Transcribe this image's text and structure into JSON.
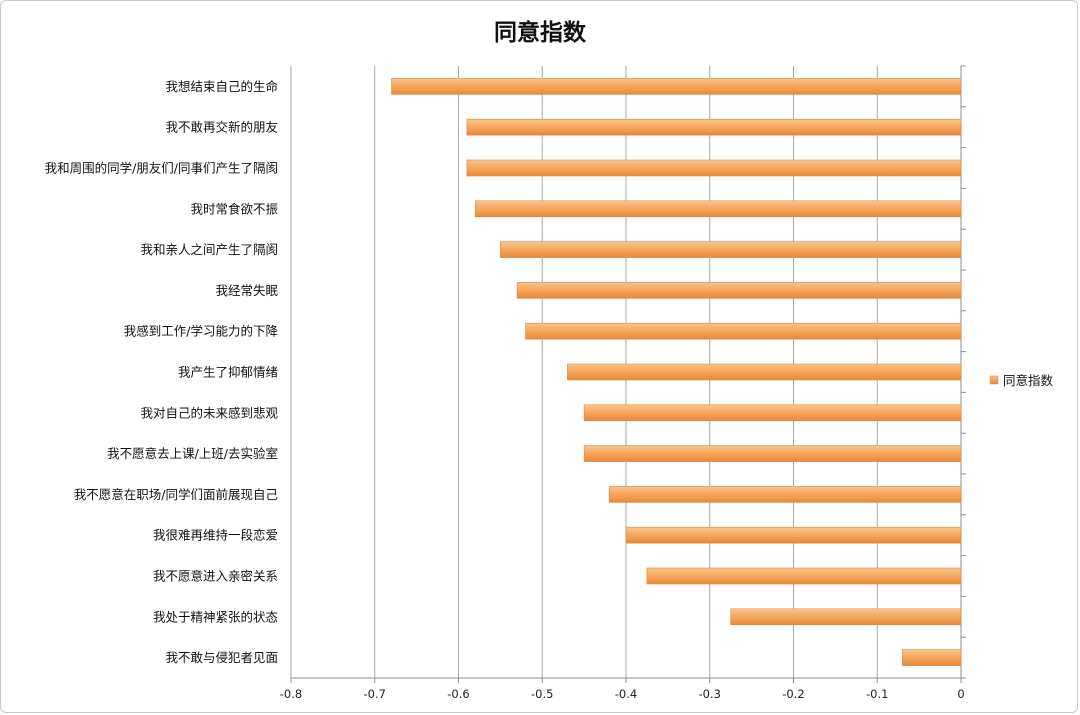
{
  "chart_data": {
    "type": "bar",
    "orientation": "horizontal",
    "title": "同意指数",
    "categories": [
      "我想结束自己的生命",
      "我不敢再交新的朋友",
      "我和周围的同学/朋友们/同事们产生了隔阂",
      "我时常食欲不振",
      "我和亲人之间产生了隔阂",
      "我经常失眠",
      "我感到工作/学习能力的下降",
      "我产生了抑郁情绪",
      "我对自己的未来感到悲观",
      "我不愿意去上课/上班/去实验室",
      "我不愿意在职场/同学们面前展现自己",
      "我很难再维持一段恋爱",
      "我不愿意进入亲密关系",
      "我处于精神紧张的状态",
      "我不敢与侵犯者见面"
    ],
    "series": [
      {
        "name": "同意指数",
        "color": "#F5A65B",
        "values": [
          -0.68,
          -0.59,
          -0.59,
          -0.58,
          -0.55,
          -0.53,
          -0.52,
          -0.47,
          -0.45,
          -0.45,
          -0.42,
          -0.4,
          -0.375,
          -0.275,
          -0.07
        ]
      }
    ],
    "xlim": [
      -0.8,
      0
    ],
    "xticks": [
      "-0.8",
      "-0.7",
      "-0.6",
      "-0.5",
      "-0.4",
      "-0.3",
      "-0.2",
      "-0.1",
      "0"
    ],
    "xlabel": "",
    "ylabel": "",
    "grid": "vertical",
    "legend": "right"
  }
}
